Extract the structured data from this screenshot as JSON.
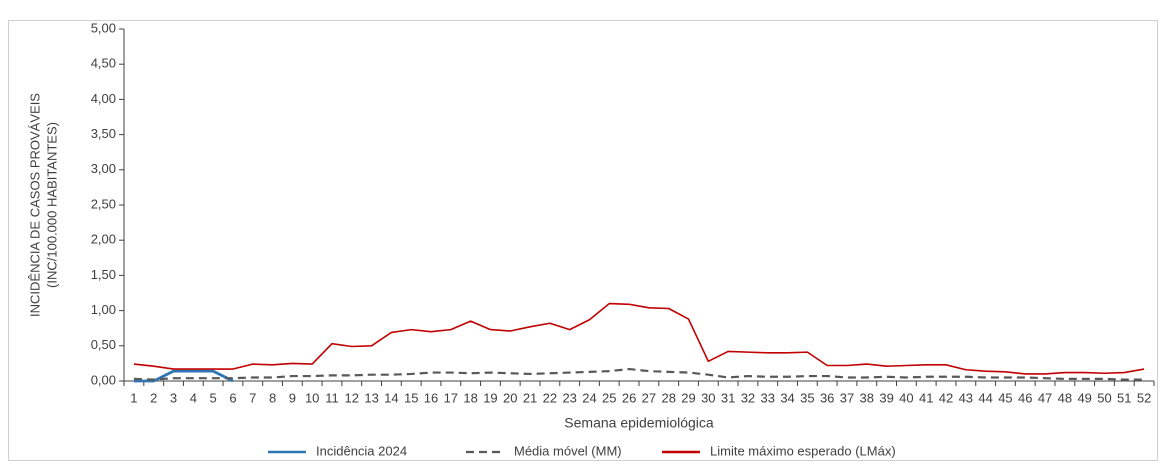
{
  "chart_data": {
    "type": "line",
    "y_label": [
      "INCIDÊNCIA DE CASOS PROVÁVEIS",
      "(INC/100.000 HABITANTES)"
    ],
    "x_label": "Semana epidemiológica",
    "categories": [
      "1",
      "2",
      "3",
      "4",
      "5",
      "6",
      "7",
      "8",
      "9",
      "10",
      "11",
      "12",
      "13",
      "14",
      "15",
      "16",
      "17",
      "18",
      "19",
      "20",
      "21",
      "22",
      "23",
      "24",
      "25",
      "26",
      "27",
      "28",
      "29",
      "30",
      "31",
      "32",
      "33",
      "34",
      "35",
      "36",
      "37",
      "38",
      "39",
      "40",
      "41",
      "42",
      "43",
      "44",
      "45",
      "46",
      "47",
      "48",
      "49",
      "50",
      "51",
      "52"
    ],
    "series": [
      {
        "name": "Incidência 2024",
        "color": "#2e75b6",
        "style": "solid",
        "values": [
          0,
          0,
          0.14,
          0.14,
          0.14,
          0,
          null,
          null,
          null,
          null,
          null,
          null,
          null,
          null,
          null,
          null,
          null,
          null,
          null,
          null,
          null,
          null,
          null,
          null,
          null,
          null,
          null,
          null,
          null,
          null,
          null,
          null,
          null,
          null,
          null,
          null,
          null,
          null,
          null,
          null,
          null,
          null,
          null,
          null,
          null,
          null,
          null,
          null,
          null,
          null,
          null,
          null
        ]
      },
      {
        "name": "Média móvel (MM)",
        "color": "#595959",
        "style": "dashed",
        "values": [
          0.03,
          0.02,
          0.04,
          0.04,
          0.04,
          0.04,
          0.05,
          0.05,
          0.07,
          0.07,
          0.08,
          0.08,
          0.09,
          0.09,
          0.1,
          0.12,
          0.12,
          0.11,
          0.12,
          0.11,
          0.1,
          0.11,
          0.12,
          0.13,
          0.14,
          0.17,
          0.14,
          0.13,
          0.12,
          0.09,
          0.05,
          0.07,
          0.06,
          0.06,
          0.07,
          0.07,
          0.05,
          0.05,
          0.06,
          0.05,
          0.06,
          0.06,
          0.06,
          0.05,
          0.05,
          0.05,
          0.04,
          0.03,
          0.03,
          0.03,
          0.02,
          0.02
        ]
      },
      {
        "name": "Limite máximo esperado (LMáx)",
        "color": "#c00000",
        "style": "solid",
        "values": [
          0.24,
          0.21,
          0.17,
          0.17,
          0.17,
          0.17,
          0.24,
          0.23,
          0.25,
          0.24,
          0.53,
          0.49,
          0.5,
          0.69,
          0.73,
          0.7,
          0.73,
          0.85,
          0.73,
          0.71,
          0.77,
          0.82,
          0.73,
          0.87,
          1.1,
          1.09,
          1.04,
          1.03,
          0.88,
          0.28,
          0.42,
          0.41,
          0.4,
          0.4,
          0.41,
          0.22,
          0.22,
          0.24,
          0.21,
          0.22,
          0.23,
          0.23,
          0.16,
          0.14,
          0.13,
          0.1,
          0.1,
          0.12,
          0.12,
          0.11,
          0.12,
          0.17
        ]
      }
    ],
    "ylim": [
      0,
      5
    ],
    "yticks": [
      {
        "value": 0,
        "label": "0,00"
      },
      {
        "value": 0.5,
        "label": "0,50"
      },
      {
        "value": 1,
        "label": "1,00"
      },
      {
        "value": 1.5,
        "label": "1,50"
      },
      {
        "value": 2,
        "label": "2,00"
      },
      {
        "value": 2.5,
        "label": "2,50"
      },
      {
        "value": 3,
        "label": "3,00"
      },
      {
        "value": 3.5,
        "label": "3,50"
      },
      {
        "value": 4,
        "label": "4,00"
      },
      {
        "value": 4.5,
        "label": "4,50"
      },
      {
        "value": 5,
        "label": "5,00"
      }
    ],
    "grid": false,
    "legend": "bottom"
  }
}
